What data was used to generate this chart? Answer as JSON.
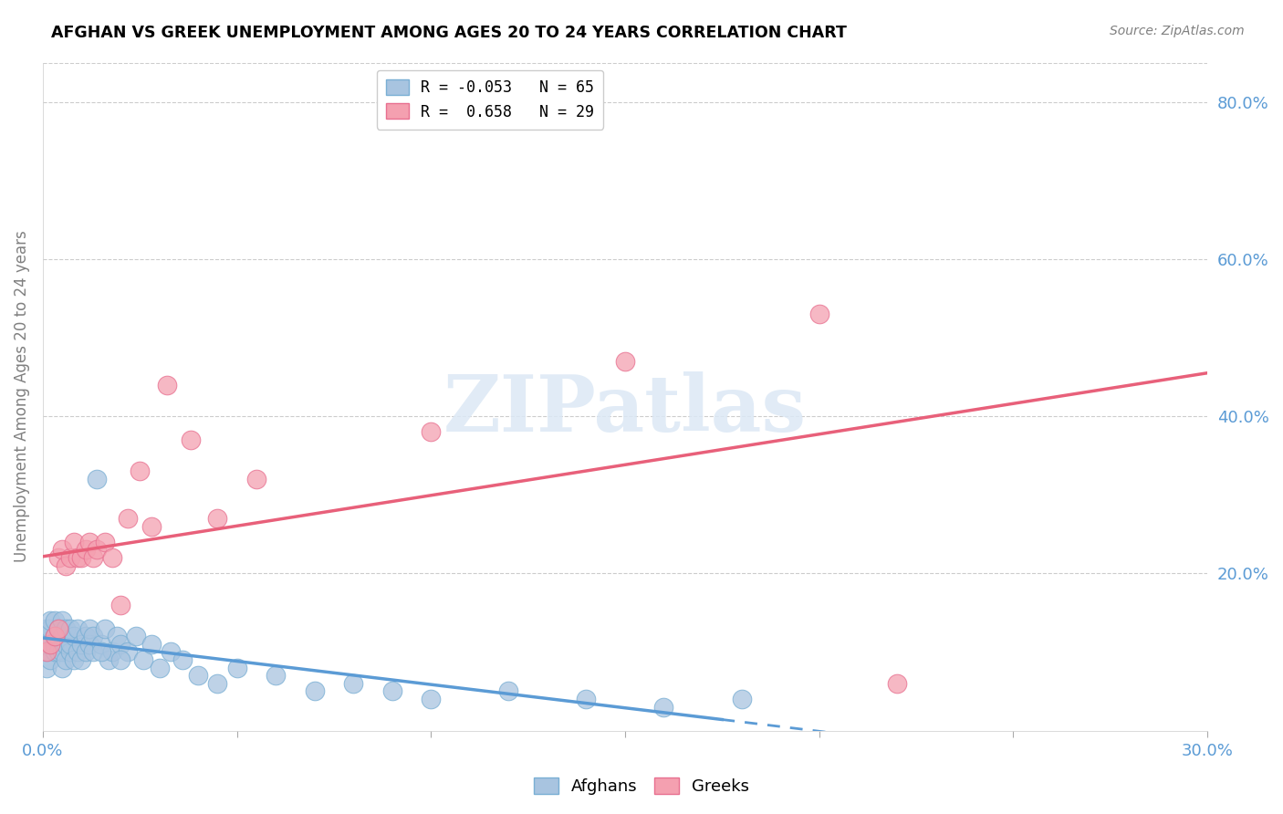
{
  "title": "AFGHAN VS GREEK UNEMPLOYMENT AMONG AGES 20 TO 24 YEARS CORRELATION CHART",
  "source": "Source: ZipAtlas.com",
  "ylabel": "Unemployment Among Ages 20 to 24 years",
  "xlim": [
    0.0,
    0.3
  ],
  "ylim": [
    0.0,
    0.85
  ],
  "xticks": [
    0.0,
    0.05,
    0.1,
    0.15,
    0.2,
    0.25,
    0.3
  ],
  "xtick_labels": [
    "0.0%",
    "",
    "",
    "",
    "",
    "",
    "30.0%"
  ],
  "yticks": [
    0.0,
    0.2,
    0.4,
    0.6,
    0.8
  ],
  "ytick_labels": [
    "",
    "20.0%",
    "40.0%",
    "60.0%",
    "80.0%"
  ],
  "afghan_color": "#a8c4e0",
  "afghan_edge_color": "#7aafd4",
  "greek_color": "#f4a0b0",
  "greek_edge_color": "#e87090",
  "afghan_line_color": "#5b9bd5",
  "greek_line_color": "#e8607a",
  "watermark_text": "ZIPatlas",
  "watermark_color": "#dce8f5",
  "legend_afghan_label": "R = -0.053   N = 65",
  "legend_greek_label": "R =  0.658   N = 29",
  "afghan_line_solid_end": 0.175,
  "greek_line_end": 0.3,
  "afghan_x": [
    0.001,
    0.001,
    0.001,
    0.001,
    0.002,
    0.002,
    0.002,
    0.002,
    0.003,
    0.003,
    0.003,
    0.003,
    0.004,
    0.004,
    0.004,
    0.005,
    0.005,
    0.005,
    0.005,
    0.006,
    0.006,
    0.006,
    0.007,
    0.007,
    0.007,
    0.008,
    0.008,
    0.009,
    0.009,
    0.01,
    0.01,
    0.011,
    0.011,
    0.012,
    0.012,
    0.013,
    0.013,
    0.014,
    0.015,
    0.016,
    0.017,
    0.018,
    0.019,
    0.02,
    0.022,
    0.024,
    0.026,
    0.028,
    0.03,
    0.033,
    0.036,
    0.04,
    0.045,
    0.05,
    0.06,
    0.07,
    0.08,
    0.09,
    0.1,
    0.12,
    0.14,
    0.16,
    0.18,
    0.015,
    0.02
  ],
  "afghan_y": [
    0.08,
    0.1,
    0.12,
    0.13,
    0.09,
    0.11,
    0.13,
    0.14,
    0.1,
    0.11,
    0.12,
    0.14,
    0.1,
    0.12,
    0.13,
    0.08,
    0.1,
    0.12,
    0.14,
    0.09,
    0.11,
    0.13,
    0.1,
    0.11,
    0.13,
    0.09,
    0.12,
    0.1,
    0.13,
    0.09,
    0.11,
    0.1,
    0.12,
    0.11,
    0.13,
    0.1,
    0.12,
    0.32,
    0.11,
    0.13,
    0.09,
    0.1,
    0.12,
    0.11,
    0.1,
    0.12,
    0.09,
    0.11,
    0.08,
    0.1,
    0.09,
    0.07,
    0.06,
    0.08,
    0.07,
    0.05,
    0.06,
    0.05,
    0.04,
    0.05,
    0.04,
    0.03,
    0.04,
    0.1,
    0.09
  ],
  "greek_x": [
    0.001,
    0.002,
    0.003,
    0.004,
    0.004,
    0.005,
    0.006,
    0.007,
    0.008,
    0.009,
    0.01,
    0.011,
    0.012,
    0.013,
    0.014,
    0.016,
    0.018,
    0.02,
    0.022,
    0.025,
    0.028,
    0.032,
    0.038,
    0.045,
    0.055,
    0.1,
    0.15,
    0.2,
    0.22
  ],
  "greek_y": [
    0.1,
    0.11,
    0.12,
    0.13,
    0.22,
    0.23,
    0.21,
    0.22,
    0.24,
    0.22,
    0.22,
    0.23,
    0.24,
    0.22,
    0.23,
    0.24,
    0.22,
    0.16,
    0.27,
    0.33,
    0.26,
    0.44,
    0.37,
    0.27,
    0.32,
    0.38,
    0.47,
    0.53,
    0.06
  ]
}
